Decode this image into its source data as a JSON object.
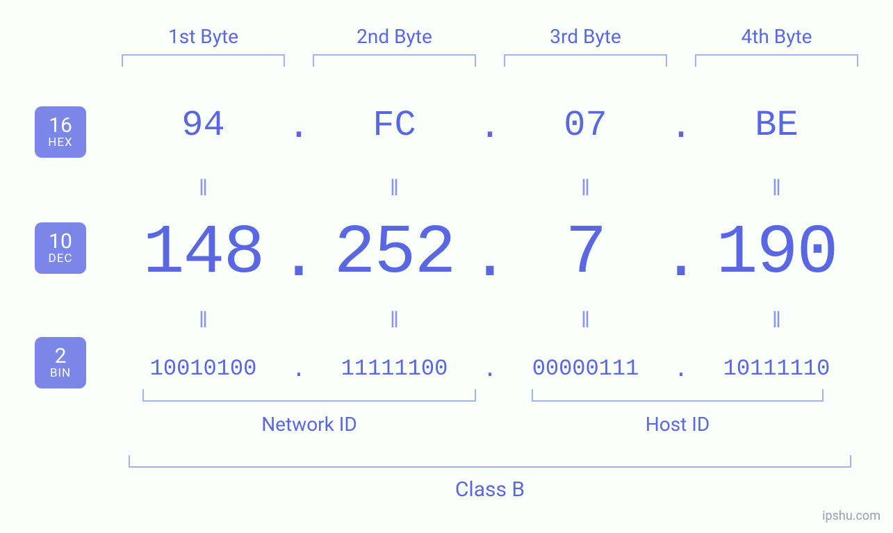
{
  "colors": {
    "primary": "#5968e2",
    "primary_light": "#8a96ec",
    "badge_bg": "#7b87e8",
    "background": "#fbfffc",
    "bracket": "#a5b0f0"
  },
  "typography": {
    "byte_label_fontsize": 28,
    "hex_fontsize": 52,
    "dec_fontsize": 100,
    "bin_fontsize": 32,
    "equals_fontsize": 32,
    "under_label_fontsize": 28,
    "class_label_fontsize": 30,
    "mono_family": "Consolas, Menlo, Courier New, monospace"
  },
  "badges": {
    "hex": {
      "num": "16",
      "label": "HEX"
    },
    "dec": {
      "num": "10",
      "label": "DEC"
    },
    "bin": {
      "num": "2",
      "label": "BIN"
    }
  },
  "bytes": [
    {
      "header": "1st Byte",
      "hex": "94",
      "dec": "148",
      "bin": "10010100"
    },
    {
      "header": "2nd Byte",
      "hex": "FC",
      "dec": "252",
      "bin": "11111100"
    },
    {
      "header": "3rd Byte",
      "hex": "07",
      "dec": "7",
      "bin": "00000111"
    },
    {
      "header": "4th Byte",
      "hex": "BE",
      "dec": "190",
      "bin": "10111110"
    }
  ],
  "equals_glyph": "ǁ",
  "dot": ".",
  "under": {
    "network": "Network ID",
    "host": "Host ID",
    "class": "Class B"
  },
  "watermark": "ipshu.com"
}
